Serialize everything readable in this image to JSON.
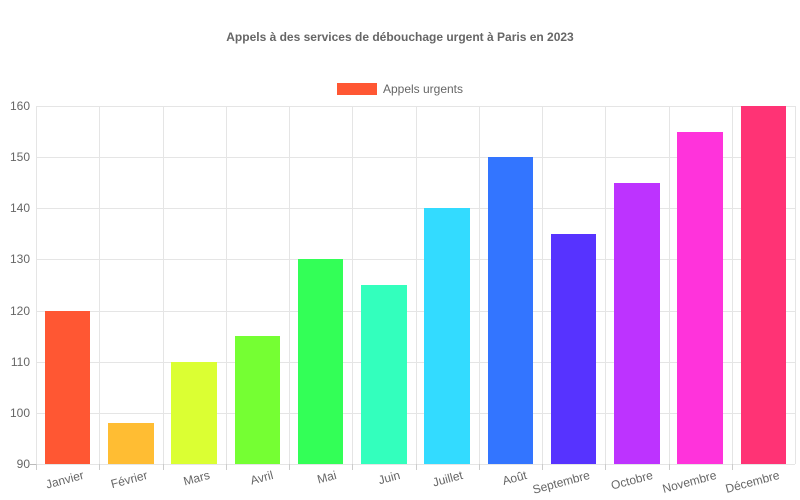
{
  "chart_data": {
    "type": "bar",
    "title": "Appels à des services de débouchage urgent à Paris en 2023",
    "xlabel": "",
    "ylabel": "",
    "ylim": [
      90,
      160
    ],
    "yticks": [
      90,
      100,
      110,
      120,
      130,
      140,
      150,
      160
    ],
    "grid": true,
    "legend_position": "top",
    "categories": [
      "Janvier",
      "Février",
      "Mars",
      "Avril",
      "Mai",
      "Juin",
      "Juillet",
      "Août",
      "Septembre",
      "Octobre",
      "Novembre",
      "Décembre"
    ],
    "series": [
      {
        "name": "Appels urgents",
        "values": [
          120,
          98,
          110,
          115,
          130,
          125,
          140,
          150,
          135,
          145,
          155,
          160
        ],
        "colors": [
          "#ff5733",
          "#ffbd33",
          "#dbff33",
          "#75ff33",
          "#33ff57",
          "#33ffbd",
          "#33dbff",
          "#3375ff",
          "#5733ff",
          "#bd33ff",
          "#ff33db",
          "#ff3375"
        ]
      }
    ]
  },
  "legend": {
    "label": "Appels urgents",
    "color": "#ff5733"
  }
}
